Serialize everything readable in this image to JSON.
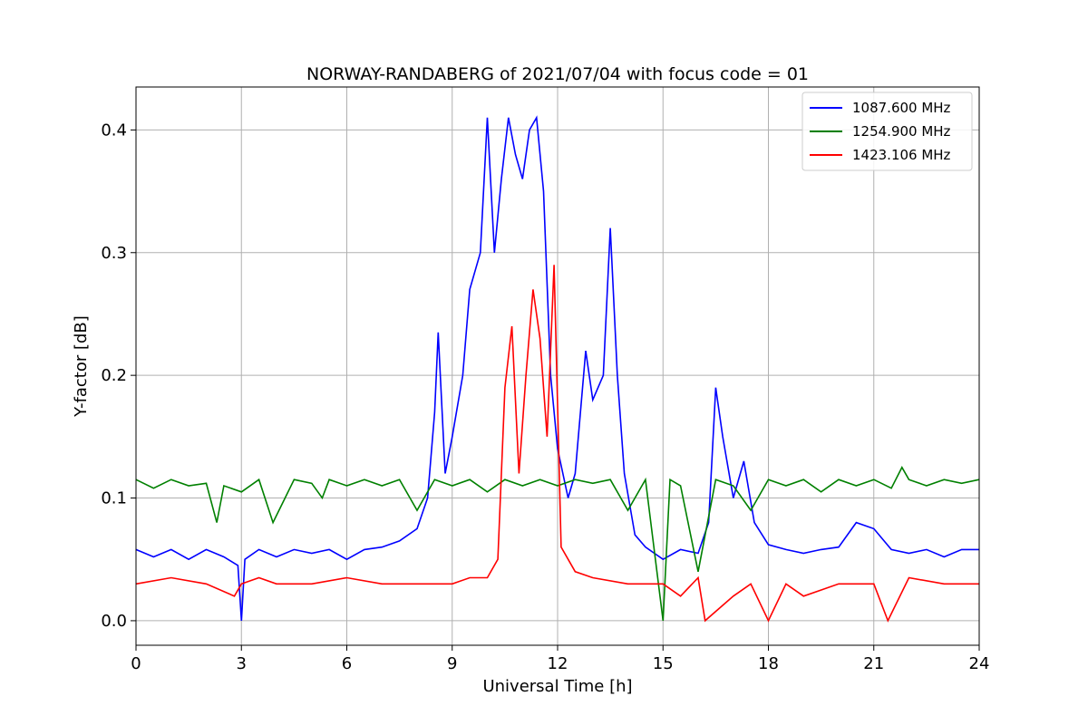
{
  "chart_data": {
    "type": "line",
    "title": "NORWAY-RANDABERG of 2021/07/04 with focus code = 01",
    "xlabel": "Universal Time [h]",
    "ylabel": "Y-factor [dB]",
    "xlim": [
      0,
      24
    ],
    "ylim": [
      -0.02,
      0.435
    ],
    "xticks": [
      0,
      3,
      6,
      9,
      12,
      15,
      18,
      21,
      24
    ],
    "xtick_labels": [
      "0",
      "3",
      "6",
      "9",
      "12",
      "15",
      "18",
      "21",
      "24"
    ],
    "yticks": [
      0.0,
      0.1,
      0.2,
      0.3,
      0.4
    ],
    "ytick_labels": [
      "0.0",
      "0.1",
      "0.2",
      "0.3",
      "0.4"
    ],
    "grid": true,
    "legend_position": "top-right",
    "series": [
      {
        "name": "1087.600 MHz",
        "color": "#0000ff",
        "x": [
          0,
          0.5,
          1.0,
          1.5,
          2.0,
          2.5,
          2.9,
          3.0,
          3.1,
          3.5,
          4.0,
          4.5,
          5.0,
          5.5,
          6.0,
          6.5,
          7.0,
          7.5,
          8.0,
          8.3,
          8.5,
          8.6,
          8.8,
          9.0,
          9.3,
          9.5,
          9.8,
          10.0,
          10.2,
          10.4,
          10.6,
          10.8,
          11.0,
          11.2,
          11.4,
          11.6,
          11.8,
          12.0,
          12.3,
          12.5,
          12.8,
          13.0,
          13.3,
          13.5,
          13.7,
          13.9,
          14.2,
          14.5,
          15.0,
          15.5,
          16.0,
          16.3,
          16.5,
          16.7,
          17.0,
          17.3,
          17.6,
          18.0,
          18.5,
          19.0,
          19.5,
          20.0,
          20.5,
          21.0,
          21.5,
          22.0,
          22.5,
          23.0,
          23.5,
          24.0
        ],
        "y": [
          0.058,
          0.052,
          0.058,
          0.05,
          0.058,
          0.052,
          0.045,
          0.0,
          0.05,
          0.058,
          0.052,
          0.058,
          0.055,
          0.058,
          0.05,
          0.058,
          0.06,
          0.065,
          0.075,
          0.1,
          0.17,
          0.235,
          0.12,
          0.15,
          0.2,
          0.27,
          0.3,
          0.41,
          0.3,
          0.36,
          0.41,
          0.38,
          0.36,
          0.4,
          0.41,
          0.35,
          0.2,
          0.14,
          0.1,
          0.12,
          0.22,
          0.18,
          0.2,
          0.32,
          0.2,
          0.12,
          0.07,
          0.06,
          0.05,
          0.058,
          0.055,
          0.08,
          0.19,
          0.15,
          0.1,
          0.13,
          0.08,
          0.062,
          0.058,
          0.055,
          0.058,
          0.06,
          0.08,
          0.075,
          0.058,
          0.055,
          0.058,
          0.052,
          0.058,
          0.058
        ]
      },
      {
        "name": "1254.900 MHz",
        "color": "#008000",
        "x": [
          0,
          0.5,
          1.0,
          1.5,
          2.0,
          2.3,
          2.5,
          3.0,
          3.5,
          3.9,
          4.5,
          5.0,
          5.3,
          5.5,
          6.0,
          6.5,
          7.0,
          7.5,
          8.0,
          8.5,
          9.0,
          9.5,
          10.0,
          10.5,
          11.0,
          11.5,
          12.0,
          12.5,
          13.0,
          13.5,
          14.0,
          14.5,
          15.0,
          15.2,
          15.5,
          16.0,
          16.5,
          17.0,
          17.5,
          18.0,
          18.5,
          19.0,
          19.5,
          20.0,
          20.5,
          21.0,
          21.5,
          21.8,
          22.0,
          22.5,
          23.0,
          23.5,
          24.0
        ],
        "y": [
          0.115,
          0.108,
          0.115,
          0.11,
          0.112,
          0.08,
          0.11,
          0.105,
          0.115,
          0.08,
          0.115,
          0.112,
          0.1,
          0.115,
          0.11,
          0.115,
          0.11,
          0.115,
          0.09,
          0.115,
          0.11,
          0.115,
          0.105,
          0.115,
          0.11,
          0.115,
          0.11,
          0.115,
          0.112,
          0.115,
          0.09,
          0.115,
          0.0,
          0.115,
          0.11,
          0.04,
          0.115,
          0.11,
          0.09,
          0.115,
          0.11,
          0.115,
          0.105,
          0.115,
          0.11,
          0.115,
          0.108,
          0.125,
          0.115,
          0.11,
          0.115,
          0.112,
          0.115
        ]
      },
      {
        "name": "1423.106 MHz",
        "color": "#ff0000",
        "x": [
          0,
          1.0,
          2.0,
          2.8,
          3.0,
          3.5,
          4.0,
          5.0,
          6.0,
          7.0,
          8.0,
          9.0,
          9.5,
          10.0,
          10.3,
          10.5,
          10.7,
          10.9,
          11.1,
          11.3,
          11.5,
          11.7,
          11.9,
          12.1,
          12.5,
          13.0,
          14.0,
          15.0,
          15.5,
          16.0,
          16.2,
          17.0,
          17.5,
          18.0,
          18.5,
          19.0,
          20.0,
          21.0,
          21.4,
          22.0,
          23.0,
          24.0
        ],
        "y": [
          0.03,
          0.035,
          0.03,
          0.02,
          0.03,
          0.035,
          0.03,
          0.03,
          0.035,
          0.03,
          0.03,
          0.03,
          0.035,
          0.035,
          0.05,
          0.19,
          0.24,
          0.12,
          0.2,
          0.27,
          0.23,
          0.15,
          0.29,
          0.06,
          0.04,
          0.035,
          0.03,
          0.03,
          0.02,
          0.035,
          0.0,
          0.02,
          0.03,
          0.0,
          0.03,
          0.02,
          0.03,
          0.03,
          0.0,
          0.035,
          0.03,
          0.03
        ]
      }
    ]
  }
}
